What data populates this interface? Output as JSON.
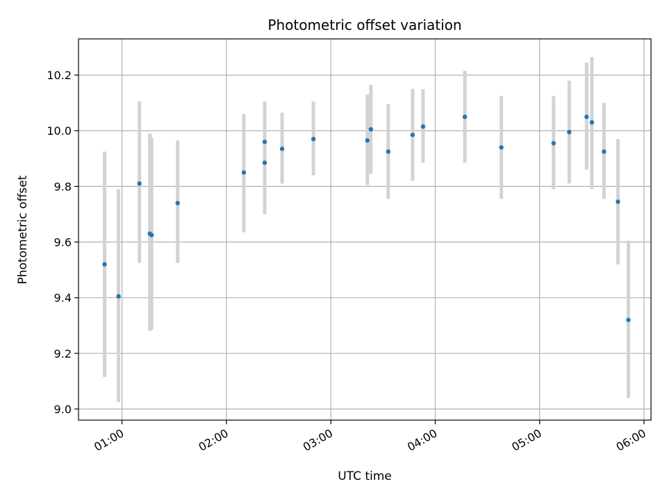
{
  "chart_data": {
    "type": "scatter",
    "title": "Photometric offset variation",
    "xlabel": "UTC time",
    "ylabel": "Photometric offset",
    "x_ticks": [
      "01:00",
      "02:00",
      "03:00",
      "04:00",
      "05:00",
      "06:00"
    ],
    "y_ticks": [
      "9.0",
      "9.2",
      "9.4",
      "9.6",
      "9.8",
      "10.0",
      "10.2"
    ],
    "xlim": [
      "00:35",
      "06:04"
    ],
    "ylim": [
      8.96,
      10.33
    ],
    "grid": true,
    "colors": {
      "point": "#1f77b4",
      "errorbar": "#d3d3d3",
      "grid": "#b0b0b0"
    },
    "series": [
      {
        "points": [
          {
            "x": "00:50",
            "y": 9.52,
            "err_low": 9.115,
            "err_high": 9.925
          },
          {
            "x": "00:58",
            "y": 9.405,
            "err_low": 9.025,
            "err_high": 9.79
          },
          {
            "x": "01:10",
            "y": 9.81,
            "err_low": 9.525,
            "err_high": 10.105
          },
          {
            "x": "01:16",
            "y": 9.63,
            "err_low": 9.28,
            "err_high": 9.99
          },
          {
            "x": "01:17",
            "y": 9.625,
            "err_low": 9.285,
            "err_high": 9.975
          },
          {
            "x": "01:32",
            "y": 9.74,
            "err_low": 9.525,
            "err_high": 9.965
          },
          {
            "x": "02:10",
            "y": 9.85,
            "err_low": 9.635,
            "err_high": 10.06
          },
          {
            "x": "02:22",
            "y": 9.96,
            "err_low": 9.82,
            "err_high": 10.105
          },
          {
            "x": "02:22",
            "y": 9.885,
            "err_low": 9.7,
            "err_high": 10.07
          },
          {
            "x": "02:32",
            "y": 9.935,
            "err_low": 9.81,
            "err_high": 10.065
          },
          {
            "x": "02:50",
            "y": 9.97,
            "err_low": 9.84,
            "err_high": 10.105
          },
          {
            "x": "03:21",
            "y": 9.965,
            "err_low": 9.805,
            "err_high": 10.13
          },
          {
            "x": "03:23",
            "y": 10.005,
            "err_low": 9.845,
            "err_high": 10.165
          },
          {
            "x": "03:33",
            "y": 9.925,
            "err_low": 9.755,
            "err_high": 10.095
          },
          {
            "x": "03:47",
            "y": 9.985,
            "err_low": 9.82,
            "err_high": 10.15
          },
          {
            "x": "03:53",
            "y": 10.015,
            "err_low": 9.885,
            "err_high": 10.15
          },
          {
            "x": "04:17",
            "y": 10.05,
            "err_low": 9.885,
            "err_high": 10.215
          },
          {
            "x": "04:38",
            "y": 9.94,
            "err_low": 9.755,
            "err_high": 10.125
          },
          {
            "x": "05:08",
            "y": 9.955,
            "err_low": 9.79,
            "err_high": 10.125
          },
          {
            "x": "05:17",
            "y": 9.995,
            "err_low": 9.81,
            "err_high": 10.18
          },
          {
            "x": "05:27",
            "y": 10.05,
            "err_low": 9.86,
            "err_high": 10.245
          },
          {
            "x": "05:30",
            "y": 10.03,
            "err_low": 9.79,
            "err_high": 10.265
          },
          {
            "x": "05:37",
            "y": 9.925,
            "err_low": 9.755,
            "err_high": 10.1
          },
          {
            "x": "05:45",
            "y": 9.745,
            "err_low": 9.52,
            "err_high": 9.97
          },
          {
            "x": "05:51",
            "y": 9.32,
            "err_low": 9.04,
            "err_high": 9.605
          }
        ]
      }
    ]
  }
}
